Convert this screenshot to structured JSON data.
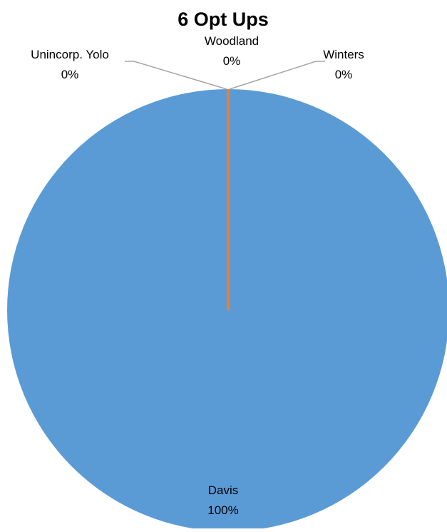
{
  "chart_data": {
    "type": "pie",
    "title": "6 Opt Ups",
    "series": [
      {
        "categories": [
          "Davis",
          "Woodland",
          "Winters",
          "Unincorp. Yolo"
        ],
        "values": [
          100,
          0,
          0,
          0
        ],
        "value_labels": [
          "100%",
          "0%",
          "0%",
          "0%"
        ]
      }
    ],
    "colors": {
      "Davis": "#5b9bd5",
      "Woodland": "#ffc000",
      "Winters": "#a5a5a5",
      "Unincorp. Yolo": "#ed7d31"
    },
    "leader_line_color": "#a5a5a5",
    "legend": "none"
  }
}
